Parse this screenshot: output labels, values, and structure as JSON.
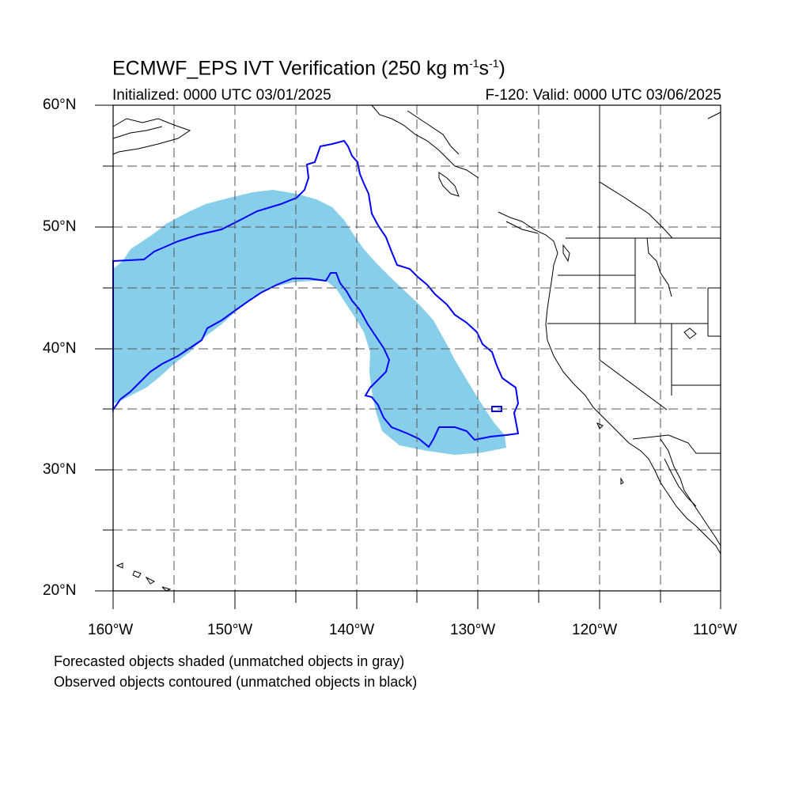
{
  "title": {
    "main": "ECMWF_EPS IVT Verification (250 kg m",
    "sup1": "-1",
    "mid": "s",
    "sup2": "-1",
    "end": ")"
  },
  "initialized": "Initialized: 0000 UTC 03/01/2025",
  "valid": "F-120: Valid: 0000 UTC 03/06/2025",
  "lat_labels": [
    "60°N",
    "50°N",
    "40°N",
    "30°N",
    "20°N"
  ],
  "lon_labels": [
    "160°W",
    "150°W",
    "140°W",
    "130°W",
    "120°W",
    "110°W"
  ],
  "notes": [
    "Forecasted objects shaded (unmatched objects in gray)",
    "Observed objects contoured (unmatched objects in black)"
  ],
  "colors": {
    "forecast_fill": "#87ceeb",
    "observed_contour": "#0000ff",
    "coastline": "#000000",
    "grid": "#555555"
  }
}
